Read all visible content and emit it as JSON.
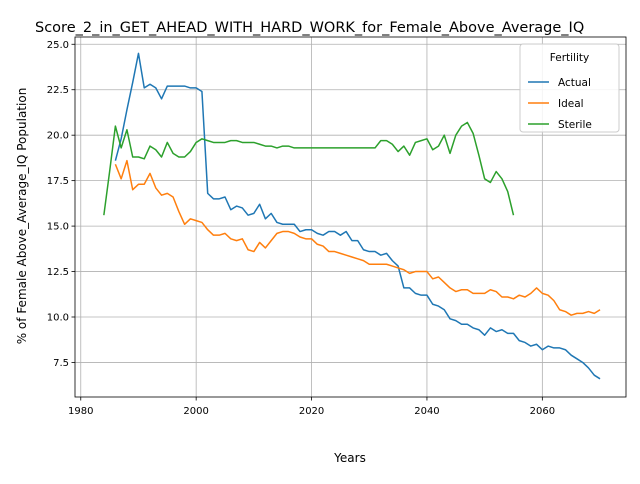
{
  "chart_data": {
    "type": "line",
    "title": "Score_2_in_GET_AHEAD_WITH_HARD_WORK_for_Female_Above_Average_IQ",
    "xlabel": "Years",
    "ylabel": "% of Female Above_Average_IQ Population",
    "xlim": [
      1979,
      2074.5
    ],
    "ylim": [
      5.6,
      25.4
    ],
    "xticks": [
      1980,
      2000,
      2020,
      2040,
      2060
    ],
    "xtick_labels": [
      "1980",
      "2000",
      "2020",
      "2040",
      "2060"
    ],
    "yticks": [
      7.5,
      10.0,
      12.5,
      15.0,
      17.5,
      20.0,
      22.5,
      25.0
    ],
    "ytick_labels": [
      "7.5",
      "10.0",
      "12.5",
      "15.0",
      "17.5",
      "20.0",
      "22.5",
      "25.0"
    ],
    "grid": true,
    "legend": {
      "title": "Fertility",
      "placement": "top-right"
    },
    "colors": {
      "Actual": "#1f77b4",
      "Ideal": "#ff7f0e",
      "Sterile": "#2ca02c"
    },
    "series": [
      {
        "name": "Actual",
        "x": [
          1986,
          1987,
          1988,
          1989,
          1990,
          1991,
          1992,
          1993,
          1994,
          1995,
          1996,
          1997,
          1998,
          1999,
          2000,
          2001,
          2002,
          2003,
          2004,
          2005,
          2006,
          2007,
          2008,
          2009,
          2010,
          2011,
          2012,
          2013,
          2014,
          2015,
          2016,
          2017,
          2018,
          2019,
          2020,
          2021,
          2022,
          2023,
          2024,
          2025,
          2026,
          2027,
          2028,
          2029,
          2030,
          2031,
          2032,
          2033,
          2034,
          2035,
          2036,
          2037,
          2038,
          2039,
          2040,
          2041,
          2042,
          2043,
          2044,
          2045,
          2046,
          2047,
          2048,
          2049,
          2050,
          2051,
          2052,
          2053,
          2054,
          2055,
          2056,
          2057,
          2058,
          2059,
          2060,
          2061,
          2062,
          2063,
          2064,
          2065,
          2066,
          2067,
          2068,
          2069,
          2070
        ],
        "values": [
          18.6,
          19.8,
          21.4,
          22.9,
          24.5,
          22.6,
          22.8,
          22.6,
          22.0,
          22.7,
          22.7,
          22.7,
          22.7,
          22.6,
          22.6,
          22.4,
          16.8,
          16.5,
          16.5,
          16.6,
          15.9,
          16.1,
          16.0,
          15.6,
          15.7,
          16.2,
          15.4,
          15.7,
          15.2,
          15.1,
          15.1,
          15.1,
          14.7,
          14.8,
          14.8,
          14.6,
          14.5,
          14.7,
          14.7,
          14.5,
          14.7,
          14.2,
          14.2,
          13.7,
          13.6,
          13.6,
          13.4,
          13.5,
          13.1,
          12.8,
          11.6,
          11.6,
          11.3,
          11.2,
          11.2,
          10.7,
          10.6,
          10.4,
          9.9,
          9.8,
          9.6,
          9.6,
          9.4,
          9.3,
          9.0,
          9.4,
          9.2,
          9.3,
          9.1,
          9.1,
          8.7,
          8.6,
          8.4,
          8.5,
          8.2,
          8.4,
          8.3,
          8.3,
          8.2,
          7.9,
          7.7,
          7.5,
          7.2,
          6.8,
          6.6
        ]
      },
      {
        "name": "Ideal",
        "x": [
          1986,
          1987,
          1988,
          1989,
          1990,
          1991,
          1992,
          1993,
          1994,
          1995,
          1996,
          1997,
          1998,
          1999,
          2000,
          2001,
          2002,
          2003,
          2004,
          2005,
          2006,
          2007,
          2008,
          2009,
          2010,
          2011,
          2012,
          2013,
          2014,
          2015,
          2016,
          2017,
          2018,
          2019,
          2020,
          2021,
          2022,
          2023,
          2024,
          2025,
          2026,
          2027,
          2028,
          2029,
          2030,
          2031,
          2032,
          2033,
          2034,
          2035,
          2036,
          2037,
          2038,
          2039,
          2040,
          2041,
          2042,
          2043,
          2044,
          2045,
          2046,
          2047,
          2048,
          2049,
          2050,
          2051,
          2052,
          2053,
          2054,
          2055,
          2056,
          2057,
          2058,
          2059,
          2060,
          2061,
          2062,
          2063,
          2064,
          2065,
          2066,
          2067,
          2068,
          2069,
          2070
        ],
        "values": [
          18.4,
          17.6,
          18.6,
          17.0,
          17.3,
          17.3,
          17.9,
          17.1,
          16.7,
          16.8,
          16.6,
          15.8,
          15.1,
          15.4,
          15.3,
          15.2,
          14.8,
          14.5,
          14.5,
          14.6,
          14.3,
          14.2,
          14.3,
          13.7,
          13.6,
          14.1,
          13.8,
          14.2,
          14.6,
          14.7,
          14.7,
          14.6,
          14.4,
          14.3,
          14.3,
          14.0,
          13.9,
          13.6,
          13.6,
          13.5,
          13.4,
          13.3,
          13.2,
          13.1,
          12.9,
          12.9,
          12.9,
          12.9,
          12.8,
          12.7,
          12.6,
          12.4,
          12.5,
          12.5,
          12.5,
          12.1,
          12.2,
          11.9,
          11.6,
          11.4,
          11.5,
          11.5,
          11.3,
          11.3,
          11.3,
          11.5,
          11.4,
          11.1,
          11.1,
          11.0,
          11.2,
          11.1,
          11.3,
          11.6,
          11.3,
          11.2,
          10.9,
          10.4,
          10.3,
          10.1,
          10.2,
          10.2,
          10.3,
          10.2,
          10.4
        ]
      },
      {
        "name": "Sterile",
        "x": [
          1984,
          1985,
          1986,
          1987,
          1988,
          1989,
          1990,
          1991,
          1992,
          1993,
          1994,
          1995,
          1996,
          1997,
          1998,
          1999,
          2000,
          2001,
          2002,
          2003,
          2004,
          2005,
          2006,
          2007,
          2008,
          2009,
          2010,
          2011,
          2012,
          2013,
          2014,
          2015,
          2016,
          2017,
          2018,
          2019,
          2020,
          2021,
          2022,
          2023,
          2024,
          2025,
          2026,
          2027,
          2028,
          2029,
          2030,
          2031,
          2032,
          2033,
          2034,
          2035,
          2036,
          2037,
          2038,
          2039,
          2040,
          2041,
          2042,
          2043,
          2044,
          2045,
          2046,
          2047,
          2048,
          2049,
          2050,
          2051,
          2052,
          2053,
          2054,
          2055
        ],
        "values": [
          15.6,
          18.0,
          20.5,
          19.3,
          20.3,
          18.8,
          18.8,
          18.7,
          19.4,
          19.2,
          18.8,
          19.6,
          19.0,
          18.8,
          18.8,
          19.1,
          19.6,
          19.8,
          19.7,
          19.6,
          19.6,
          19.6,
          19.7,
          19.7,
          19.6,
          19.6,
          19.6,
          19.5,
          19.4,
          19.4,
          19.3,
          19.4,
          19.4,
          19.3,
          19.3,
          19.3,
          19.3,
          19.3,
          19.3,
          19.3,
          19.3,
          19.3,
          19.3,
          19.3,
          19.3,
          19.3,
          19.3,
          19.3,
          19.7,
          19.7,
          19.5,
          19.1,
          19.4,
          18.9,
          19.6,
          19.7,
          19.8,
          19.2,
          19.4,
          20.0,
          19.0,
          20.0,
          20.5,
          20.7,
          20.1,
          18.9,
          17.6,
          17.4,
          18.0,
          17.6,
          16.9,
          15.6
        ]
      }
    ]
  }
}
